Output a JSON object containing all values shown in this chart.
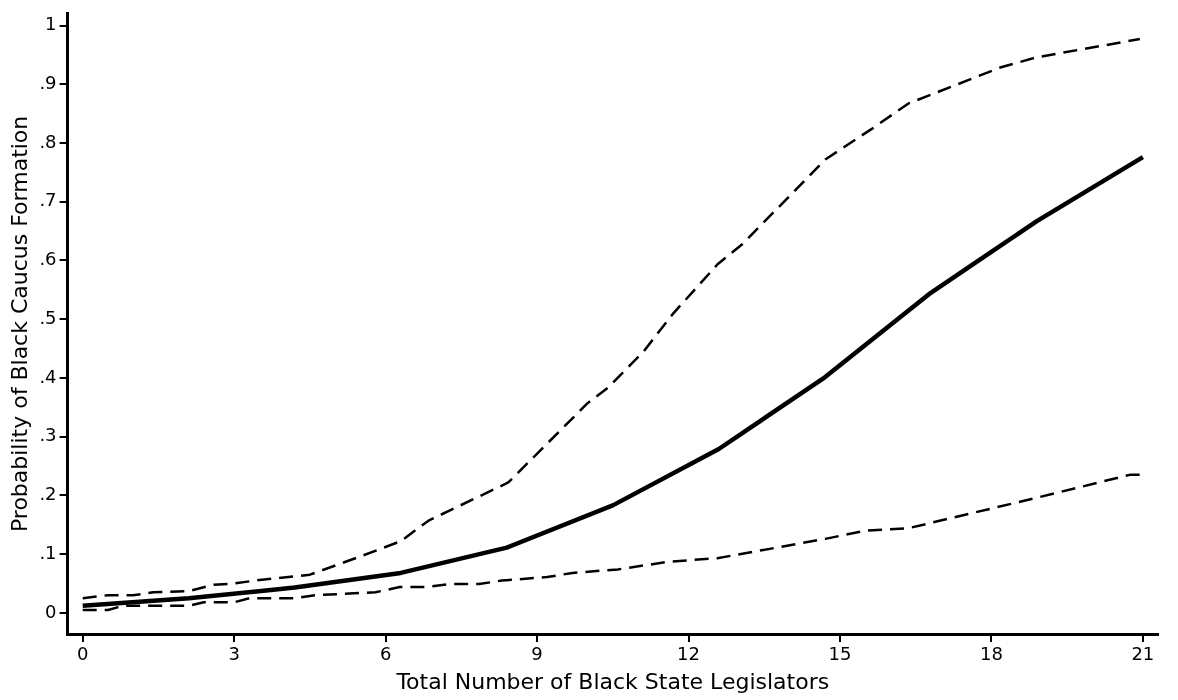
{
  "chart_data": {
    "type": "line",
    "xlabel": "Total Number of Black State Legislators",
    "ylabel": "Probability of Black Caucus Formation",
    "xlim": [
      -0.3,
      21.3
    ],
    "ylim": [
      -0.036,
      1.02
    ],
    "xticks": [
      0,
      3,
      6,
      9,
      12,
      15,
      18,
      21
    ],
    "yticks": [
      0,
      {
        "value": 0.1,
        "label": ".1"
      },
      {
        "value": 0.2,
        "label": ".2"
      },
      {
        "value": 0.3,
        "label": ".3"
      },
      {
        "value": 0.4,
        "label": ".4"
      },
      {
        "value": 0.5,
        "label": ".5"
      },
      {
        "value": 0.6,
        "label": ".6"
      },
      {
        "value": 0.7,
        "label": ".7"
      },
      {
        "value": 0.8,
        "label": ".8"
      },
      {
        "value": 0.9,
        "label": ".9"
      },
      1
    ],
    "grid": false,
    "legend": false,
    "marker": "none",
    "series": [
      {
        "color": "#000000",
        "line_style": "dashed",
        "x": [
          0,
          0.5,
          1,
          1.4,
          2.1,
          2.6,
          3,
          3.5,
          4.2,
          4.5,
          5.5,
          6.3,
          6.85,
          8.43,
          10.0,
          10.4,
          11.1,
          11.7,
          12.57,
          13.07,
          14.71,
          15.63,
          16.35,
          18.19,
          18.9,
          20.94
        ],
        "values": [
          0.025,
          0.03,
          0.03,
          0.035,
          0.037,
          0.048,
          0.05,
          0.056,
          0.062,
          0.065,
          0.096,
          0.122,
          0.157,
          0.222,
          0.357,
          0.383,
          0.444,
          0.51,
          0.593,
          0.628,
          0.772,
          0.824,
          0.867,
          0.929,
          0.946,
          0.977
        ]
      },
      {
        "color": "#000000",
        "line_style": "solid",
        "x": [
          0,
          2.1,
          4.2,
          6.3,
          8.4,
          10.5,
          12.6,
          14.7,
          16.8,
          18.9,
          21
        ],
        "values": [
          0.012,
          0.025,
          0.043,
          0.068,
          0.111,
          0.183,
          0.279,
          0.401,
          0.545,
          0.667,
          0.776
        ]
      },
      {
        "color": "#000000",
        "line_style": "dashed",
        "x": [
          0,
          0.5,
          0.8,
          2.1,
          2.4,
          3,
          3.3,
          4.2,
          4.6,
          5.8,
          6.28,
          6.8,
          7.28,
          7.85,
          8.3,
          9.2,
          9.7,
          10.6,
          11.6,
          12.57,
          14.71,
          15.5,
          16.35,
          18.9,
          20.74,
          20.94
        ],
        "values": [
          0.005,
          0.005,
          0.012,
          0.012,
          0.018,
          0.018,
          0.025,
          0.025,
          0.03,
          0.035,
          0.044,
          0.044,
          0.049,
          0.049,
          0.055,
          0.061,
          0.068,
          0.074,
          0.087,
          0.093,
          0.126,
          0.14,
          0.144,
          0.196,
          0.235,
          0.235
        ]
      }
    ]
  }
}
